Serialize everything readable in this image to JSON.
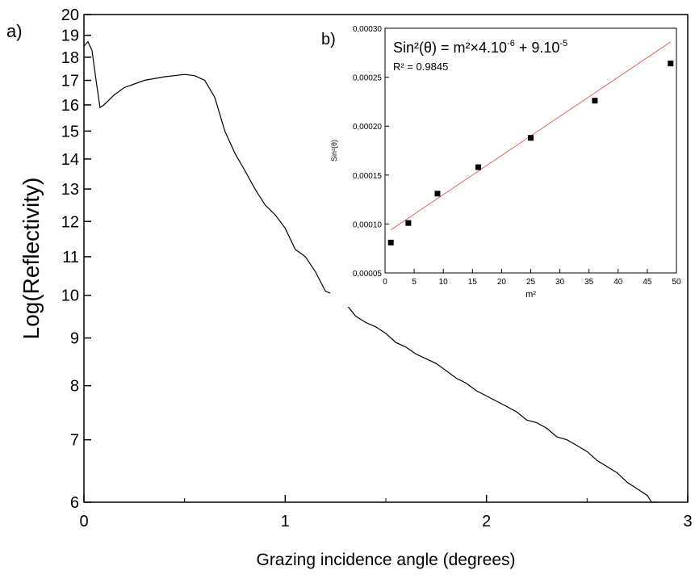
{
  "chart_data": [
    {
      "panel_label": "a)",
      "type": "line",
      "xlabel": "Grazing incidence angle (degrees)",
      "ylabel": "Log(Reflectivity)",
      "xlim": [
        0,
        3
      ],
      "ylim": [
        6,
        20
      ],
      "y_scale": "log",
      "grid": false,
      "x_ticks": [
        0,
        1,
        2,
        3
      ],
      "x_tick_labels": [
        "0",
        "1",
        "2",
        "3"
      ],
      "y_ticks": [
        6,
        7,
        8,
        9,
        10,
        11,
        12,
        13,
        14,
        15,
        16,
        17,
        18,
        19,
        20
      ],
      "y_tick_labels": [
        "6",
        "7",
        "8",
        "9",
        "10",
        "11",
        "12",
        "13",
        "14",
        "15",
        "16",
        "17",
        "18",
        "19",
        "20"
      ],
      "series": [
        {
          "color": "#000000",
          "x": [
            0.0,
            0.02,
            0.04,
            0.06,
            0.08,
            0.1,
            0.15,
            0.2,
            0.3,
            0.4,
            0.5,
            0.55,
            0.6,
            0.65,
            0.7,
            0.75,
            0.8,
            0.85,
            0.9,
            0.95,
            1.0,
            1.05,
            1.1,
            1.15,
            1.2,
            1.25,
            1.3,
            1.35,
            1.4,
            1.45,
            1.5,
            1.55,
            1.6,
            1.65,
            1.7,
            1.75,
            1.8,
            1.85,
            1.9,
            1.95,
            2.0,
            2.05,
            2.1,
            2.15,
            2.2,
            2.25,
            2.3,
            2.35,
            2.4,
            2.45,
            2.5,
            2.55,
            2.6,
            2.65,
            2.7,
            2.75,
            2.8,
            2.82,
            2.85
          ],
          "y": [
            18.5,
            18.7,
            18.3,
            17.0,
            15.9,
            16.0,
            16.4,
            16.7,
            17.0,
            17.15,
            17.25,
            17.2,
            17.0,
            16.3,
            15.0,
            14.2,
            13.6,
            13.0,
            12.5,
            12.2,
            11.8,
            11.2,
            11.0,
            10.6,
            10.1,
            10.0,
            9.8,
            9.5,
            9.35,
            9.25,
            9.1,
            8.9,
            8.8,
            8.65,
            8.55,
            8.45,
            8.3,
            8.15,
            8.05,
            7.9,
            7.8,
            7.7,
            7.6,
            7.5,
            7.35,
            7.3,
            7.2,
            7.05,
            7.0,
            6.9,
            6.8,
            6.65,
            6.55,
            6.45,
            6.3,
            6.2,
            6.1,
            6.0,
            6.0
          ]
        }
      ]
    },
    {
      "panel_label": "b)",
      "type": "scatter",
      "xlabel": "m²",
      "ylabel": "Sin²(θ)",
      "xlim": [
        0,
        50
      ],
      "ylim": [
        5e-05,
        0.0003
      ],
      "grid": false,
      "x_ticks": [
        0,
        5,
        10,
        15,
        20,
        25,
        30,
        35,
        40,
        45,
        50
      ],
      "x_tick_labels": [
        "0",
        "5",
        "10",
        "15",
        "20",
        "25",
        "30",
        "35",
        "40",
        "45",
        "50"
      ],
      "y_ticks": [
        5e-05,
        0.0001,
        0.00015,
        0.0002,
        0.00025,
        0.0003
      ],
      "y_tick_labels": [
        "0,00005",
        "0,00010",
        "0,00015",
        "0,00020",
        "0,00025",
        "0,00030"
      ],
      "annotation_equation_base": "Sin²(θ) = m²×4.10",
      "annotation_equation_exp1": "-6",
      "annotation_equation_mid": " + 9.10",
      "annotation_equation_exp2": "-5",
      "annotation_r2": "R² = 0.9845",
      "points": {
        "color": "#000000",
        "x": [
          1,
          4,
          9,
          16,
          25,
          36,
          49
        ],
        "y": [
          8.1e-05,
          0.000101,
          0.000131,
          0.000158,
          0.000188,
          0.000226,
          0.000264
        ]
      },
      "fit": {
        "color": "#e06666",
        "slope": 4e-06,
        "intercept": 9e-05,
        "x_range": [
          1,
          49
        ]
      }
    }
  ]
}
